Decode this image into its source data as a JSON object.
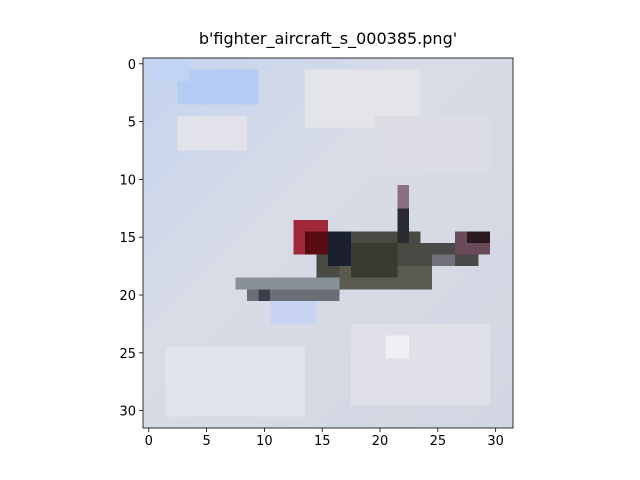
{
  "chart_data": {
    "type": "image",
    "title": "b'fighter_aircraft_s_000385.png'",
    "xlim": [
      -0.5,
      31.5
    ],
    "ylim": [
      31.5,
      -0.5
    ],
    "xticks": [
      0,
      5,
      10,
      15,
      20,
      25,
      30
    ],
    "yticks": [
      0,
      5,
      10,
      15,
      20,
      25,
      30
    ]
  }
}
